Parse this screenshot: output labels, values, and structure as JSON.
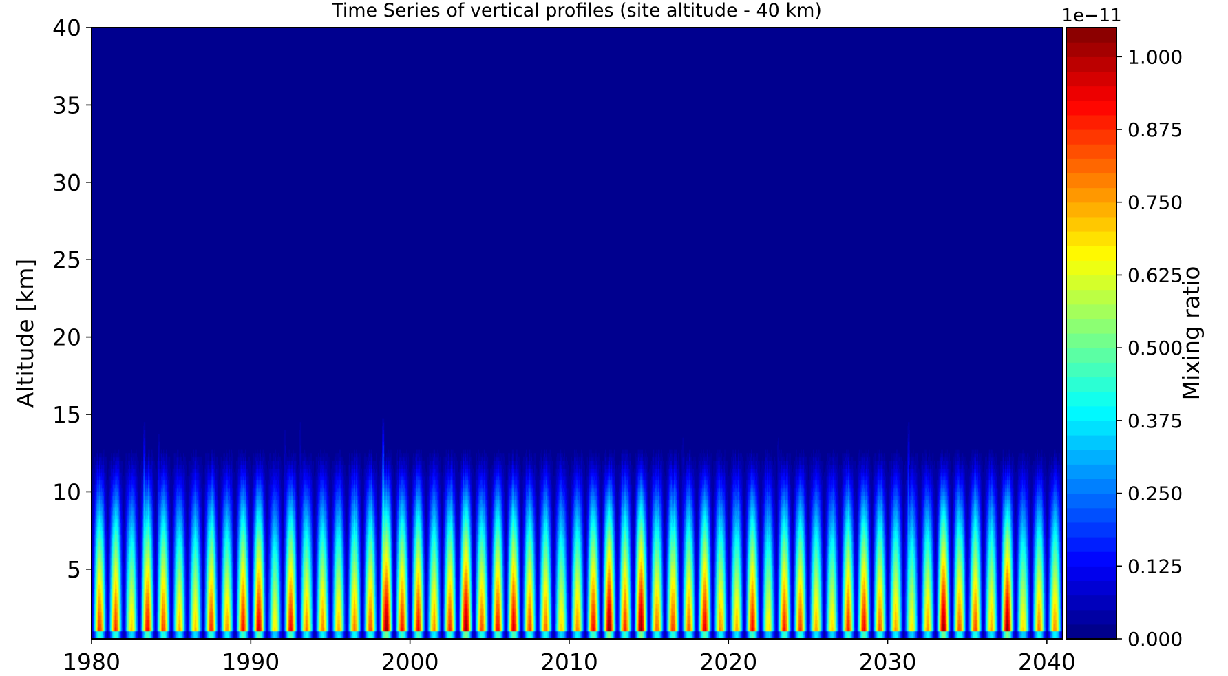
{
  "chart_data": {
    "type": "heatmap",
    "title": "Time Series of vertical profiles (site altitude - 40 km)",
    "xlabel": "",
    "ylabel": "Altitude [km]",
    "xlim": [
      1980,
      2041
    ],
    "ylim": [
      0.5,
      40
    ],
    "x_ticks": [
      1980,
      1990,
      2000,
      2010,
      2020,
      2030,
      2040
    ],
    "y_ticks": [
      5,
      10,
      15,
      20,
      25,
      30,
      35,
      40
    ],
    "colorbar": {
      "label": "Mixing ratio",
      "offset_text": "1e−11",
      "range": [
        0,
        1.05
      ],
      "ticks": [
        "0.000",
        "0.125",
        "0.250",
        "0.375",
        "0.500",
        "0.625",
        "0.750",
        "0.875",
        "1.000"
      ],
      "levels": 42,
      "colormap": "jet"
    },
    "seasonal_cycle": {
      "period_years": 1,
      "surface_peak_range": [
        0.6,
        1.0
      ],
      "typical_top_altitude_km": 12.5,
      "notable_spikes": [
        {
          "year": 1983.3,
          "altitude_km": 14.5
        },
        {
          "year": 1984.2,
          "altitude_km": 14.0
        },
        {
          "year": 1992.1,
          "altitude_km": 14.5
        },
        {
          "year": 1993.1,
          "altitude_km": 15.3
        },
        {
          "year": 1998.3,
          "altitude_km": 14.9
        },
        {
          "year": 2017.1,
          "altitude_km": 14.0
        },
        {
          "year": 2023.1,
          "altitude_km": 14.0
        },
        {
          "year": 2031.3,
          "altitude_km": 14.6
        }
      ],
      "strong_peaks": [
        1998.6,
        2003.6,
        2012.6,
        2014.6,
        2033.5,
        2037.5
      ]
    },
    "background_color": "#00008f",
    "grid": false
  }
}
